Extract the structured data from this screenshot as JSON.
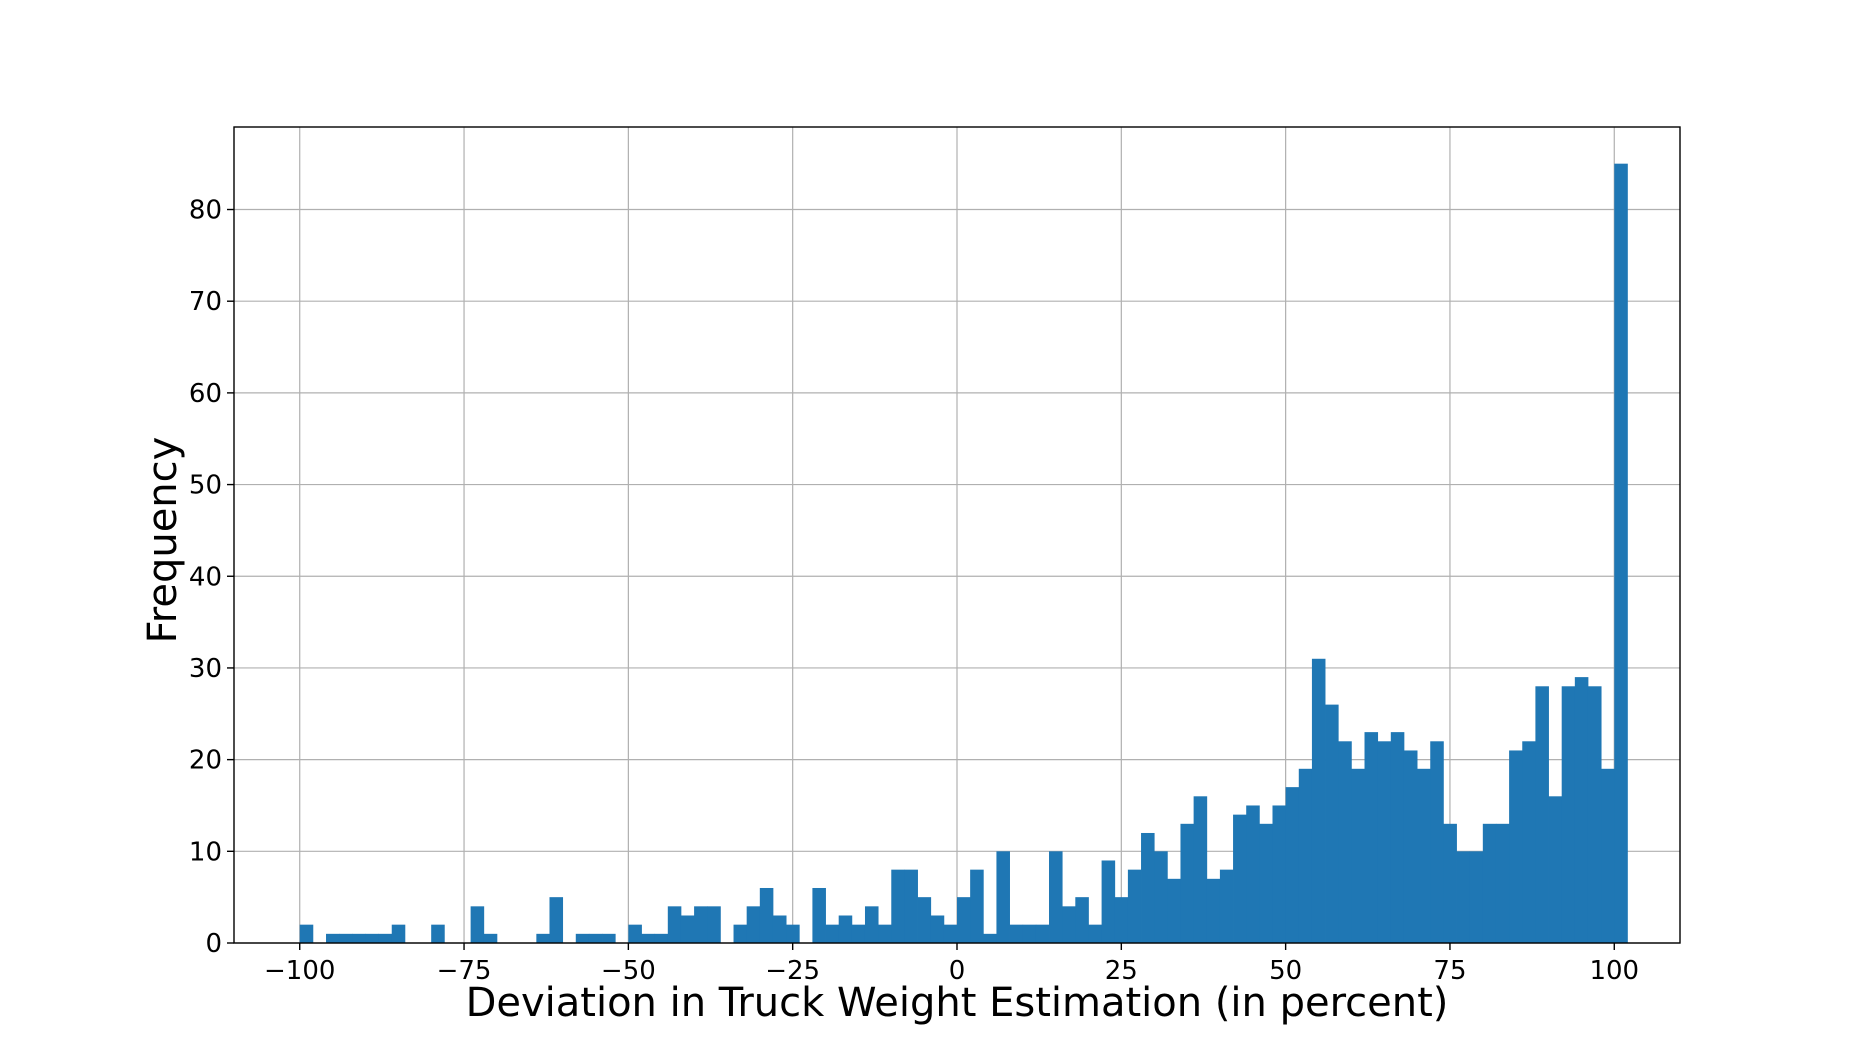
{
  "chart_data": {
    "type": "bar",
    "title": "",
    "xlabel": "Deviation in Truck Weight Estimation (in percent)",
    "ylabel": "Frequency",
    "xlim": [
      -110,
      110
    ],
    "ylim": [
      0,
      89
    ],
    "xticks": [
      -100,
      -75,
      -50,
      -25,
      0,
      25,
      50,
      75,
      100
    ],
    "xtick_labels": [
      "−100",
      "−75",
      "−50",
      "−25",
      "0",
      "25",
      "50",
      "75",
      "100"
    ],
    "yticks": [
      0,
      10,
      20,
      30,
      40,
      50,
      60,
      70,
      80
    ],
    "ytick_labels": [
      "0",
      "10",
      "20",
      "30",
      "40",
      "50",
      "60",
      "70",
      "80"
    ],
    "grid": true,
    "bar_color": "#1f77b4",
    "bin_start": -100,
    "bin_width": 2,
    "values": [
      2,
      0,
      1,
      1,
      1,
      1,
      1,
      2,
      0,
      0,
      2,
      0,
      0,
      4,
      1,
      0,
      0,
      0,
      1,
      5,
      0,
      1,
      1,
      1,
      0,
      2,
      1,
      1,
      4,
      3,
      4,
      4,
      0,
      2,
      4,
      6,
      3,
      2,
      0,
      6,
      2,
      3,
      2,
      4,
      2,
      8,
      8,
      5,
      3,
      2,
      5,
      8,
      1,
      10,
      2,
      2,
      2,
      10,
      4,
      5,
      2,
      9,
      5,
      8,
      12,
      10,
      7,
      13,
      16,
      7,
      8,
      14,
      15,
      13,
      15,
      17,
      19,
      31,
      26,
      22,
      19,
      23,
      22,
      23,
      21,
      19,
      22,
      13,
      10,
      10,
      13,
      13,
      21,
      22,
      28,
      16,
      28,
      29,
      28,
      19,
      85
    ]
  }
}
